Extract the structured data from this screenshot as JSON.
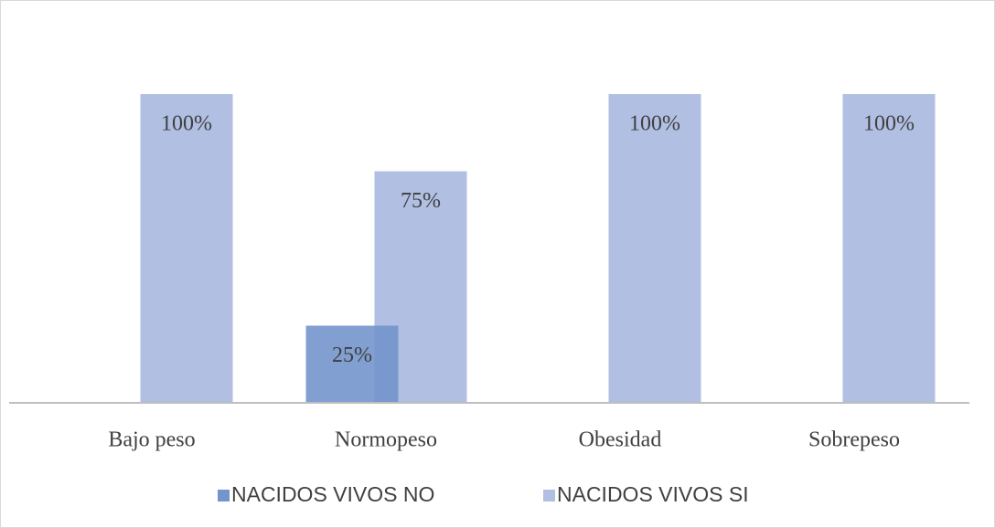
{
  "chart_data": {
    "type": "bar",
    "categories": [
      "Bajo peso",
      "Normopeso",
      "Obesidad",
      "Sobrepeso"
    ],
    "series": [
      {
        "name": "NACIDOS VIVOS NO",
        "color": "#7395cc",
        "values": [
          null,
          25,
          null,
          null
        ],
        "value_labels": [
          null,
          "25%",
          null,
          null
        ]
      },
      {
        "name": "NACIDOS VIVOS SI",
        "color": "#b0bfe2",
        "values": [
          100,
          75,
          100,
          100
        ],
        "value_labels": [
          "100%",
          "75%",
          "100%",
          "100%"
        ]
      }
    ],
    "ylim": [
      0,
      100
    ],
    "legend": "bottom"
  }
}
